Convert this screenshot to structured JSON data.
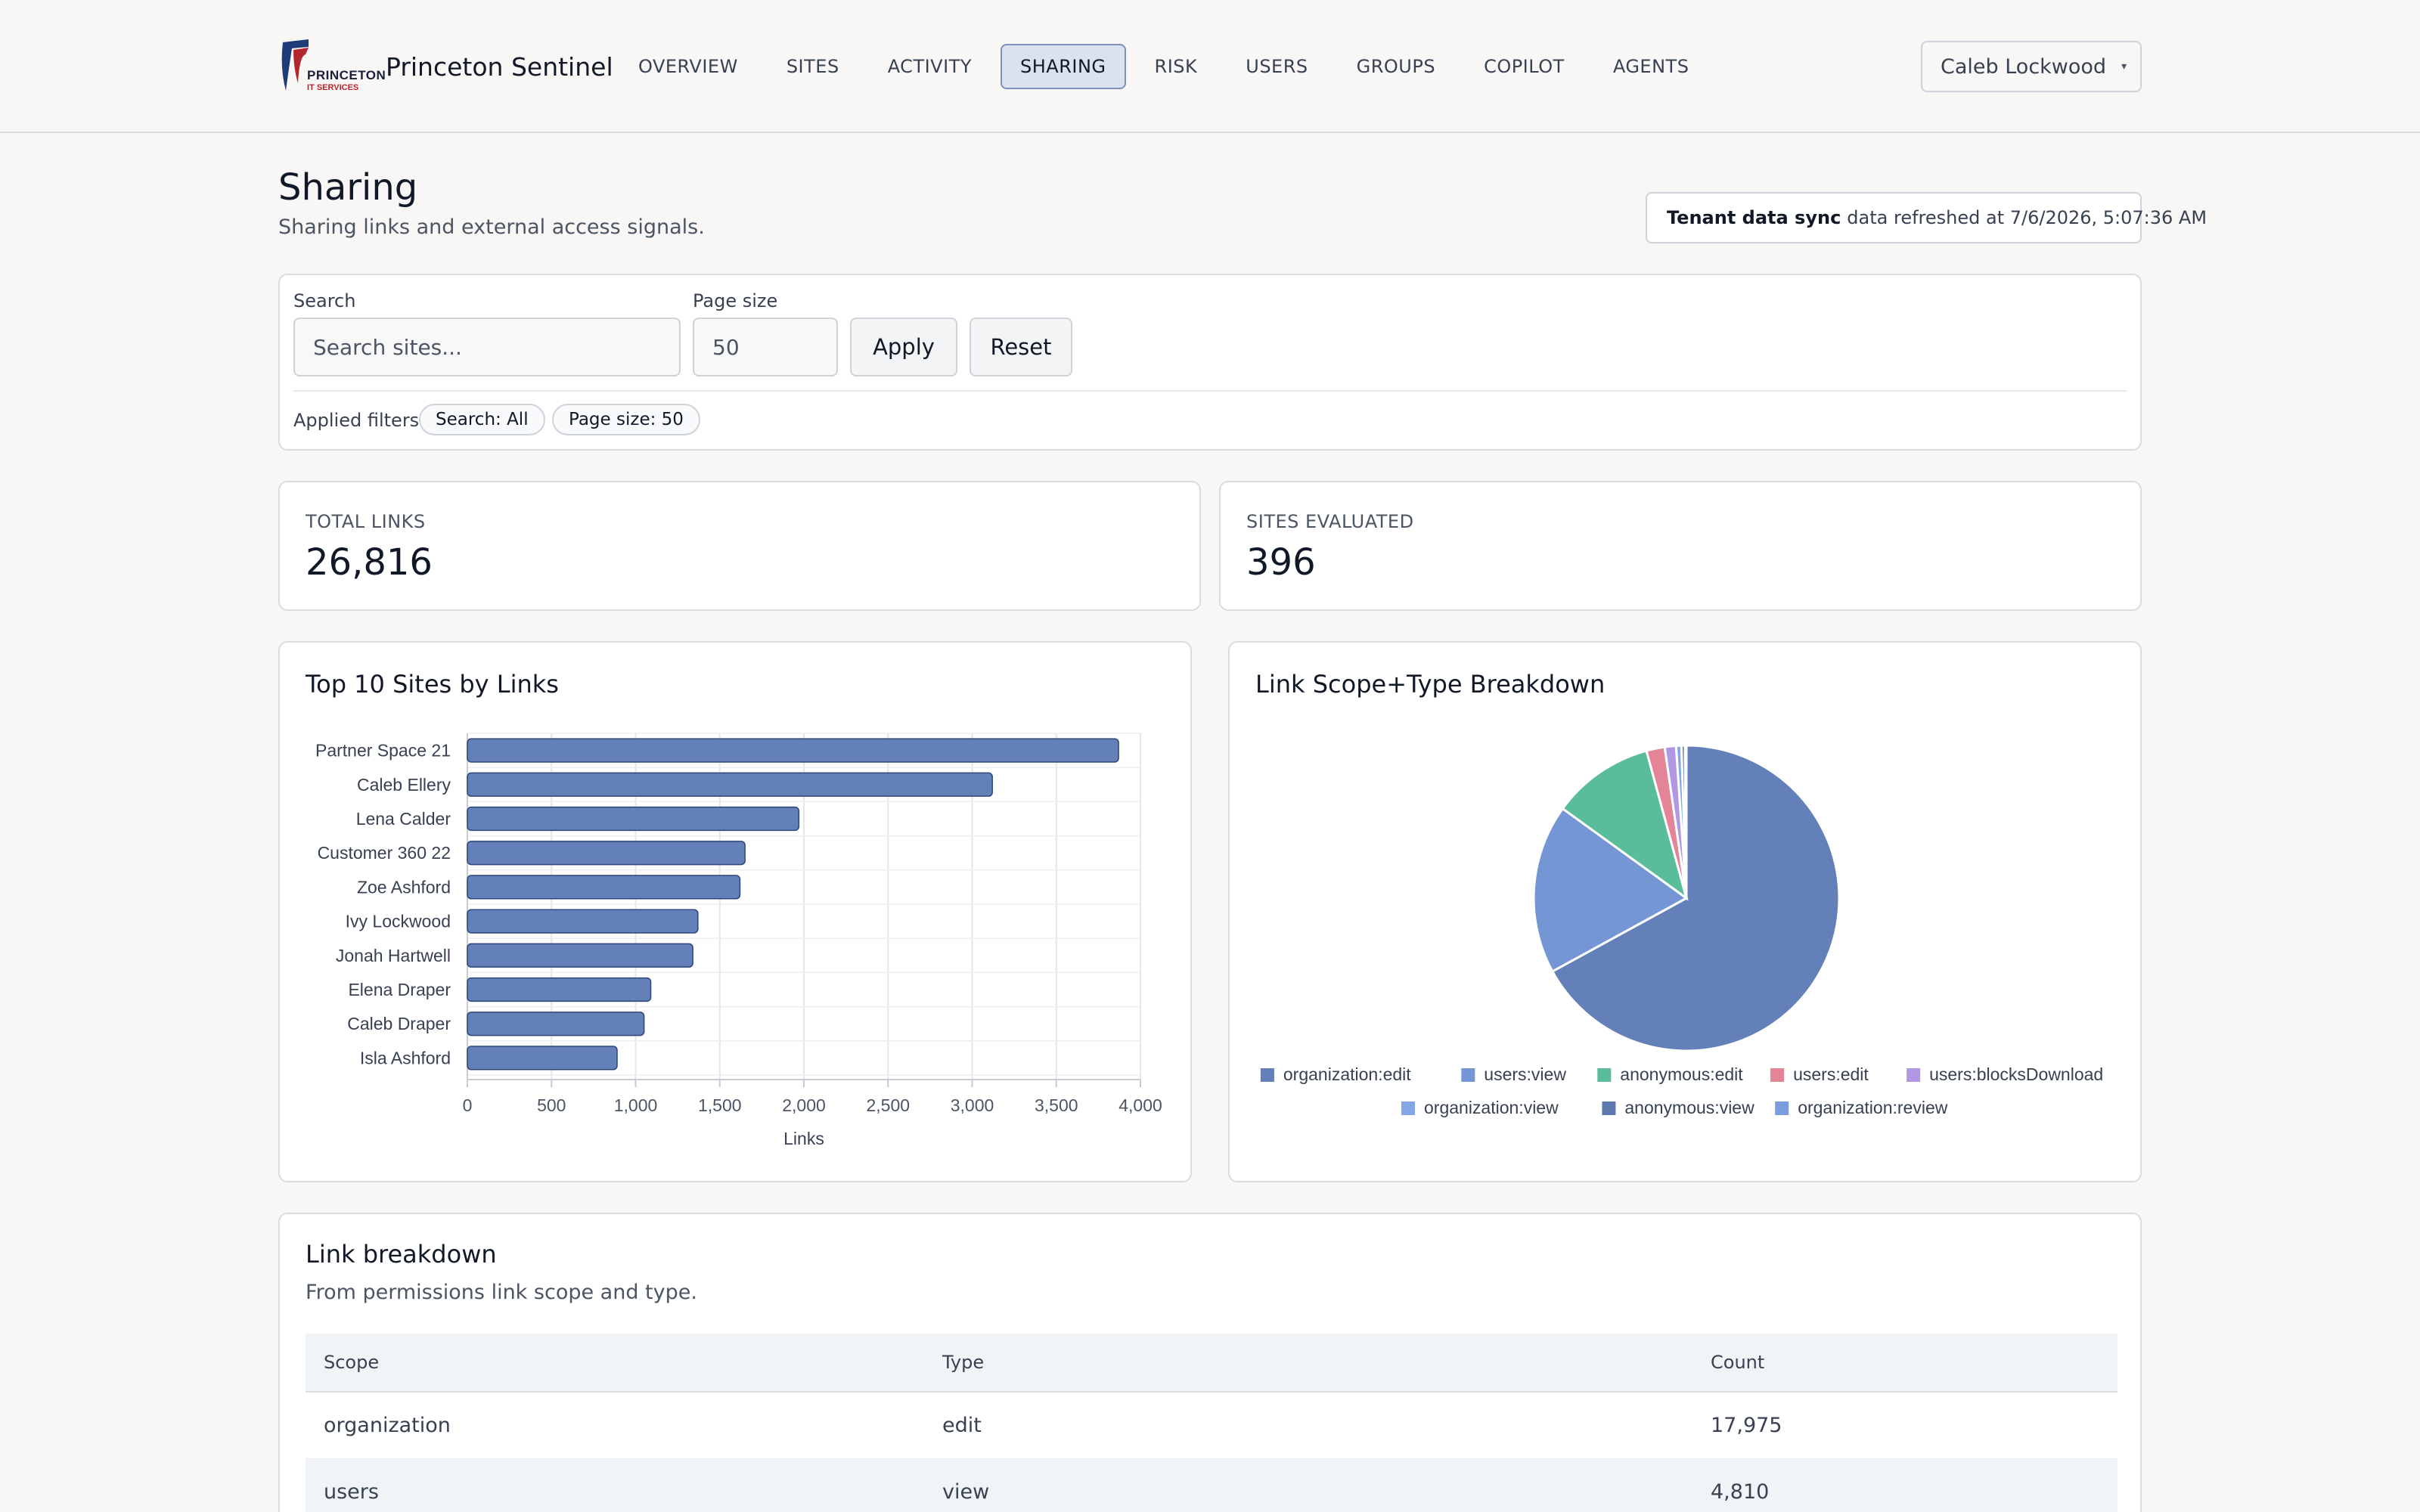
{
  "app": {
    "logo_text": "PRINCETON",
    "logo_subtext": "IT SERVICES",
    "name": "Princeton Sentinel"
  },
  "nav": [
    {
      "label": "OVERVIEW",
      "active": false
    },
    {
      "label": "SITES",
      "active": false
    },
    {
      "label": "ACTIVITY",
      "active": false
    },
    {
      "label": "SHARING",
      "active": true
    },
    {
      "label": "RISK",
      "active": false
    },
    {
      "label": "USERS",
      "active": false
    },
    {
      "label": "GROUPS",
      "active": false
    },
    {
      "label": "COPILOT",
      "active": false
    },
    {
      "label": "AGENTS",
      "active": false
    }
  ],
  "user": {
    "name": "Caleb Lockwood",
    "caret": "▾"
  },
  "page": {
    "title": "Sharing",
    "subtitle": "Sharing links and external access signals."
  },
  "sync": {
    "label": "Tenant data sync",
    "text": "data refreshed at 7/6/2026, 5:07:36 AM"
  },
  "filters": {
    "search_label": "Search",
    "search_placeholder": "Search sites...",
    "page_size_label": "Page size",
    "page_size_value": "50",
    "apply_label": "Apply",
    "reset_label": "Reset",
    "applied_label": "Applied filters",
    "chips": [
      "Search: All",
      "Page size: 50"
    ]
  },
  "kpis": [
    {
      "label": "TOTAL LINKS",
      "value": "26,816"
    },
    {
      "label": "SITES EVALUATED",
      "value": "396"
    }
  ],
  "bar_card": {
    "title": "Top 10 Sites by Links"
  },
  "pie_card": {
    "title": "Link Scope+Type Breakdown"
  },
  "colors": {
    "bar": "#6380b8",
    "pie": [
      "#6380b8",
      "#7596d4",
      "#59bc9b",
      "#e38596",
      "#b198e2",
      "#84a8e6",
      "#5d79b0",
      "#7a9ddd"
    ]
  },
  "chart_data": [
    {
      "type": "bar",
      "orientation": "horizontal",
      "title": "Top 10 Sites by Links",
      "categories": [
        "Partner Space 21",
        "Caleb Ellery",
        "Lena Calder",
        "Customer 360 22",
        "Zoe Ashford",
        "Ivy Lockwood",
        "Jonah Hartwell",
        "Elena Draper",
        "Caleb Draper",
        "Isla Ashford"
      ],
      "values": [
        3870,
        3120,
        1970,
        1650,
        1620,
        1370,
        1340,
        1090,
        1050,
        890
      ],
      "xlabel": "Links",
      "ylabel": "",
      "xlim": [
        0,
        4000
      ],
      "xticks": [
        "0",
        "500",
        "1,000",
        "1,500",
        "2,000",
        "2,500",
        "3,000",
        "3,500",
        "4,000"
      ],
      "grid": true
    },
    {
      "type": "pie",
      "title": "Link Scope+Type Breakdown",
      "labels": [
        "organization:edit",
        "users:view",
        "anonymous:edit",
        "users:edit",
        "users:blocksDownload",
        "organization:view",
        "anonymous:view",
        "organization:review"
      ],
      "values": [
        17975,
        4810,
        2900,
        520,
        320,
        150,
        100,
        41
      ],
      "legend": "bottom"
    }
  ],
  "table": {
    "title": "Link breakdown",
    "subtitle": "From permissions link scope and type.",
    "headers": [
      "Scope",
      "Type",
      "Count"
    ],
    "rows": [
      [
        "organization",
        "edit",
        "17,975"
      ],
      [
        "users",
        "view",
        "4,810"
      ]
    ]
  }
}
